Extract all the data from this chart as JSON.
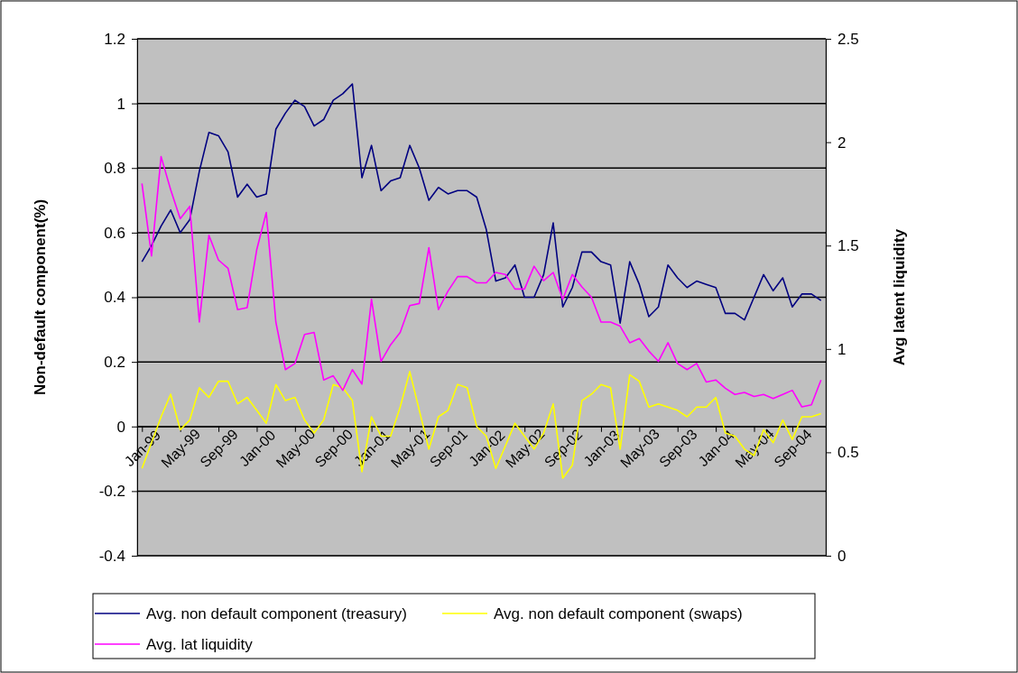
{
  "chart_data": {
    "type": "line",
    "ylabel": "Non-default component(%)",
    "y2label": "Avg latent liquidity",
    "categories": [
      "Jan-99",
      null,
      null,
      null,
      "May-99",
      null,
      null,
      null,
      "Sep-99",
      null,
      null,
      null,
      "Jan-00",
      null,
      null,
      null,
      "May-00",
      null,
      null,
      null,
      "Sep-00",
      null,
      null,
      null,
      "Jan-01",
      null,
      null,
      null,
      "May-01",
      null,
      null,
      null,
      "Sep-01",
      null,
      null,
      null,
      "Jan-02",
      null,
      null,
      null,
      "May-02",
      null,
      null,
      null,
      "Sep-02",
      null,
      null,
      null,
      "Jan-03",
      null,
      null,
      null,
      "May-03",
      null,
      null,
      null,
      "Sep-03",
      null,
      null,
      null,
      "Jan-04",
      null,
      null,
      null,
      "May-04",
      null,
      null,
      null,
      "Sep-04",
      null,
      null,
      null
    ],
    "series": [
      {
        "name": "Avg. non default component (treasury)",
        "color": "#000080",
        "values": [
          0.51,
          0.56,
          0.62,
          0.67,
          0.6,
          0.64,
          0.79,
          0.91,
          0.9,
          0.85,
          0.71,
          0.75,
          0.71,
          0.72,
          0.92,
          0.97,
          1.01,
          0.99,
          0.93,
          0.95,
          1.01,
          1.03,
          1.06,
          0.77,
          0.87,
          0.73,
          0.76,
          0.77,
          0.87,
          0.8,
          0.7,
          0.74,
          0.72,
          0.73,
          0.73,
          0.71,
          0.61,
          0.45,
          0.46,
          0.5,
          0.4,
          0.4,
          0.47,
          0.63,
          0.37,
          0.43,
          0.54,
          0.54,
          0.51,
          0.5,
          0.32,
          0.51,
          0.44,
          0.34,
          0.37,
          0.5,
          0.46,
          0.43,
          0.45,
          0.44,
          0.43,
          0.35,
          0.35,
          0.33,
          0.4,
          0.47,
          0.42,
          0.46,
          0.37,
          0.41,
          0.41,
          0.39
        ]
      },
      {
        "name": "Avg. non default component (swaps)",
        "color": "#ffff00",
        "values": [
          -0.13,
          -0.05,
          0.03,
          0.1,
          -0.01,
          0.02,
          0.12,
          0.09,
          0.14,
          0.14,
          0.07,
          0.09,
          0.05,
          0.01,
          0.13,
          0.08,
          0.09,
          0.02,
          -0.02,
          0.02,
          0.13,
          0.12,
          0.08,
          -0.14,
          0.03,
          -0.03,
          -0.03,
          0.06,
          0.17,
          0.05,
          -0.07,
          0.03,
          0.05,
          0.13,
          0.12,
          0.0,
          -0.03,
          -0.13,
          -0.06,
          0.01,
          -0.03,
          -0.07,
          -0.02,
          0.07,
          -0.16,
          -0.12,
          0.08,
          0.1,
          0.13,
          0.12,
          -0.07,
          0.16,
          0.14,
          0.06,
          0.07,
          0.06,
          0.05,
          0.03,
          0.06,
          0.06,
          0.09,
          -0.02,
          -0.03,
          -0.07,
          -0.09,
          -0.01,
          -0.05,
          0.02,
          -0.04,
          0.03,
          0.03,
          0.04
        ]
      },
      {
        "name": "Avg. lat liquidity",
        "color": "#ff00ff",
        "axis": "y2",
        "values": [
          1.8,
          1.45,
          1.93,
          1.77,
          1.63,
          1.69,
          1.13,
          1.55,
          1.43,
          1.39,
          1.19,
          1.2,
          1.48,
          1.66,
          1.13,
          0.9,
          0.93,
          1.07,
          1.08,
          0.85,
          0.87,
          0.8,
          0.9,
          0.83,
          1.24,
          0.94,
          1.02,
          1.08,
          1.21,
          1.22,
          1.49,
          1.19,
          1.28,
          1.35,
          1.35,
          1.32,
          1.32,
          1.37,
          1.36,
          1.29,
          1.29,
          1.4,
          1.33,
          1.37,
          1.24,
          1.36,
          1.3,
          1.25,
          1.13,
          1.13,
          1.11,
          1.03,
          1.05,
          0.99,
          0.94,
          1.03,
          0.93,
          0.9,
          0.93,
          0.84,
          0.85,
          0.81,
          0.78,
          0.79,
          0.77,
          0.78,
          0.76,
          0.78,
          0.8,
          0.72,
          0.73,
          0.85
        ]
      }
    ],
    "ylim": [
      -0.4,
      1.2
    ],
    "yticks": [
      {
        "value": -0.4,
        "label": "-0.4"
      },
      {
        "value": -0.2,
        "label": "-0.2"
      },
      0,
      {
        "value": 0.2,
        "label": "0.2"
      },
      {
        "value": 0.4,
        "label": "0.4"
      },
      {
        "value": 0.6,
        "label": "0.6"
      },
      {
        "value": 0.8,
        "label": "0.8"
      },
      1,
      {
        "value": 1.2,
        "label": "1.2"
      }
    ],
    "y2lim": [
      0,
      2.5
    ],
    "y2ticks": [
      0,
      {
        "value": 0.5,
        "label": "0.5"
      },
      1,
      {
        "value": 1.5,
        "label": "1.5"
      },
      2,
      {
        "value": 2.5,
        "label": "2.5"
      }
    ],
    "grid": "y",
    "legend": "bottom"
  }
}
